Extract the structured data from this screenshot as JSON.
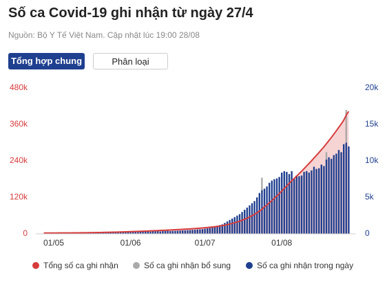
{
  "header": {
    "title": "Số ca Covid-19 ghi nhận từ ngày 27/4",
    "subtitle": "Nguồn: Bộ Y Tế Việt Nam. Cập nhật lúc 19:00 28/08"
  },
  "tabs": [
    "Tổng hợp chung",
    "Phân loại"
  ],
  "chart_data": {
    "type": "bar",
    "grid": false,
    "categories": [
      null,
      null,
      null,
      null,
      "01/05",
      null,
      null,
      null,
      null,
      null,
      null,
      null,
      null,
      null,
      null,
      null,
      null,
      null,
      null,
      null,
      null,
      null,
      null,
      null,
      null,
      null,
      null,
      null,
      null,
      null,
      null,
      null,
      null,
      null,
      null,
      "01/06",
      null,
      null,
      null,
      null,
      null,
      null,
      null,
      null,
      null,
      null,
      null,
      null,
      null,
      null,
      null,
      null,
      null,
      null,
      null,
      null,
      null,
      null,
      null,
      null,
      null,
      null,
      null,
      null,
      null,
      "01/07",
      null,
      null,
      null,
      null,
      null,
      null,
      null,
      null,
      null,
      null,
      null,
      null,
      null,
      null,
      null,
      null,
      null,
      null,
      null,
      null,
      null,
      null,
      null,
      null,
      null,
      null,
      null,
      null,
      null,
      null,
      "01/08",
      null,
      null,
      null,
      null,
      null,
      null,
      null,
      null,
      null,
      null,
      null,
      null,
      null,
      null,
      null,
      null,
      null,
      null,
      null,
      null,
      null,
      null,
      null,
      null,
      null,
      null,
      null
    ],
    "ylim": [
      0,
      480000
    ],
    "yticks": [
      0,
      {
        "value": 120000,
        "label": "120k"
      },
      {
        "value": 240000,
        "label": "240k"
      },
      {
        "value": 360000,
        "label": "360k"
      },
      {
        "value": 480000,
        "label": "480k"
      }
    ],
    "y2lim": [
      0,
      20000
    ],
    "y2ticks": [
      0,
      {
        "value": 5000,
        "label": "5k"
      },
      {
        "value": 10000,
        "label": "10k"
      },
      {
        "value": 15000,
        "label": "15k"
      },
      {
        "value": 20000,
        "label": "20k"
      }
    ],
    "series": [
      {
        "name": "Tổng số ca ghi nhận",
        "color": "#d63b3b",
        "axis": "y",
        "values": [
          2900,
          2910,
          2920,
          2930,
          2950,
          2970,
          3000,
          3030,
          3070,
          3120,
          3180,
          3240,
          3310,
          3390,
          3480,
          3580,
          3690,
          3780,
          3900,
          4030,
          4180,
          4320,
          4480,
          4650,
          4830,
          4980,
          5180,
          5390,
          5580,
          5800,
          6030,
          6280,
          6480,
          6720,
          6980,
          7260,
          7560,
          7880,
          8130,
          8440,
          8770,
          9110,
          9470,
          9770,
          10120,
          10490,
          10870,
          11200,
          11590,
          11990,
          12410,
          12790,
          13190,
          13600,
          14030,
          14480,
          14950,
          15430,
          15930,
          16450,
          17000,
          17560,
          18160,
          18780,
          19430,
          20130,
          20880,
          21680,
          22580,
          23580,
          24680,
          25880,
          27180,
          28680,
          30380,
          32280,
          34380,
          36680,
          39180,
          41880,
          44880,
          48180,
          51780,
          55680,
          59880,
          64380,
          69380,
          74980,
          80980,
          88880,
          95380,
          102380,
          109680,
          117180,
          124780,
          132580,
          140980,
          149580,
          158080,
          166280,
          174880,
          182380,
          190380,
          198280,
          206280,
          214780,
          223380,
          231780,
          240480,
          249680,
          258580,
          267580,
          277080,
          286380,
          296580,
          307080,
          317380,
          328180,
          339180,
          350680,
          361880,
          374180,
          391180,
          403180
        ]
      },
      {
        "name": "Số ca ghi nhận bổ sung",
        "color": "#aaaaaa",
        "axis": "y2",
        "values": [
          0,
          0,
          0,
          0,
          0,
          0,
          0,
          0,
          0,
          0,
          0,
          0,
          0,
          0,
          0,
          0,
          0,
          0,
          0,
          0,
          0,
          0,
          0,
          0,
          0,
          0,
          0,
          0,
          0,
          0,
          0,
          0,
          0,
          0,
          0,
          0,
          0,
          0,
          0,
          0,
          0,
          0,
          0,
          0,
          0,
          0,
          0,
          0,
          0,
          0,
          0,
          0,
          0,
          0,
          0,
          0,
          0,
          0,
          0,
          0,
          0,
          0,
          0,
          0,
          0,
          0,
          0,
          0,
          0,
          0,
          0,
          0,
          0,
          0,
          0,
          0,
          0,
          0,
          0,
          0,
          0,
          0,
          0,
          0,
          0,
          0,
          0,
          0,
          1700,
          0,
          0,
          0,
          0,
          0,
          0,
          0,
          0,
          0,
          0,
          0,
          0,
          0,
          0,
          0,
          0,
          0,
          0,
          0,
          0,
          0,
          0,
          0,
          0,
          0,
          1000,
          0,
          0,
          0,
          0,
          0,
          0,
          0,
          4500,
          0
        ]
      },
      {
        "name": "Số ca ghi nhận trong ngày",
        "color": "#1f3f8f",
        "axis": "y2",
        "values": [
          5,
          8,
          10,
          12,
          15,
          20,
          25,
          30,
          40,
          50,
          60,
          55,
          70,
          80,
          90,
          100,
          110,
          90,
          120,
          130,
          150,
          140,
          160,
          170,
          180,
          150,
          200,
          210,
          190,
          220,
          230,
          250,
          200,
          240,
          260,
          280,
          300,
          320,
          250,
          310,
          330,
          340,
          360,
          300,
          350,
          370,
          380,
          330,
          390,
          400,
          420,
          380,
          400,
          410,
          430,
          450,
          470,
          480,
          500,
          520,
          550,
          560,
          600,
          620,
          650,
          700,
          750,
          800,
          900,
          1000,
          1100,
          1200,
          1300,
          1500,
          1700,
          1900,
          2100,
          2300,
          2500,
          2700,
          3000,
          3300,
          3600,
          3900,
          4200,
          4500,
          5000,
          5600,
          6000,
          6200,
          6500,
          7000,
          7300,
          7500,
          7600,
          7800,
          8400,
          8600,
          8500,
          8200,
          8600,
          7500,
          8000,
          7900,
          8000,
          8500,
          8600,
          8400,
          8700,
          9200,
          8900,
          9000,
          9500,
          9300,
          10200,
          10500,
          10300,
          10800,
          11000,
          11500,
          11200,
          12300,
          12500,
          12000
        ]
      }
    ]
  }
}
